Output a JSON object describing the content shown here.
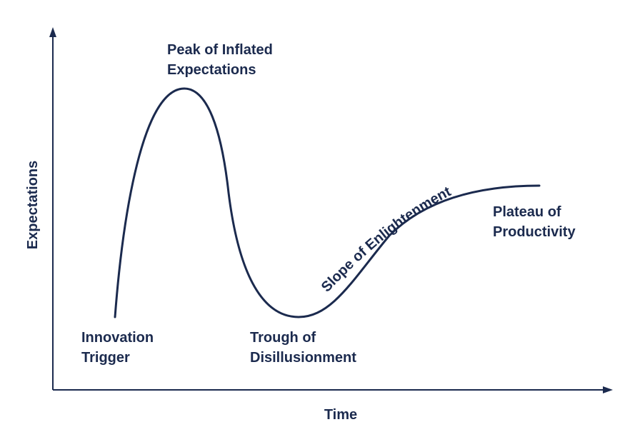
{
  "colors": {
    "ink": "#1b2a4e",
    "background": "#ffffff"
  },
  "axes": {
    "y_label": "Expectations",
    "x_label": "Time"
  },
  "phases": [
    {
      "id": "innovation-trigger",
      "lines": [
        "Innovation",
        "Trigger"
      ]
    },
    {
      "id": "peak-of-inflated-expectations",
      "lines": [
        "Peak of Inflated",
        "Expectations"
      ]
    },
    {
      "id": "trough-of-disillusionment",
      "lines": [
        "Trough of",
        "Disillusionment"
      ]
    },
    {
      "id": "slope-of-enlightenment",
      "lines": [
        "Slope of Enlightenment"
      ]
    },
    {
      "id": "plateau-of-productivity",
      "lines": [
        "Plateau of",
        "Productivity"
      ]
    }
  ]
}
